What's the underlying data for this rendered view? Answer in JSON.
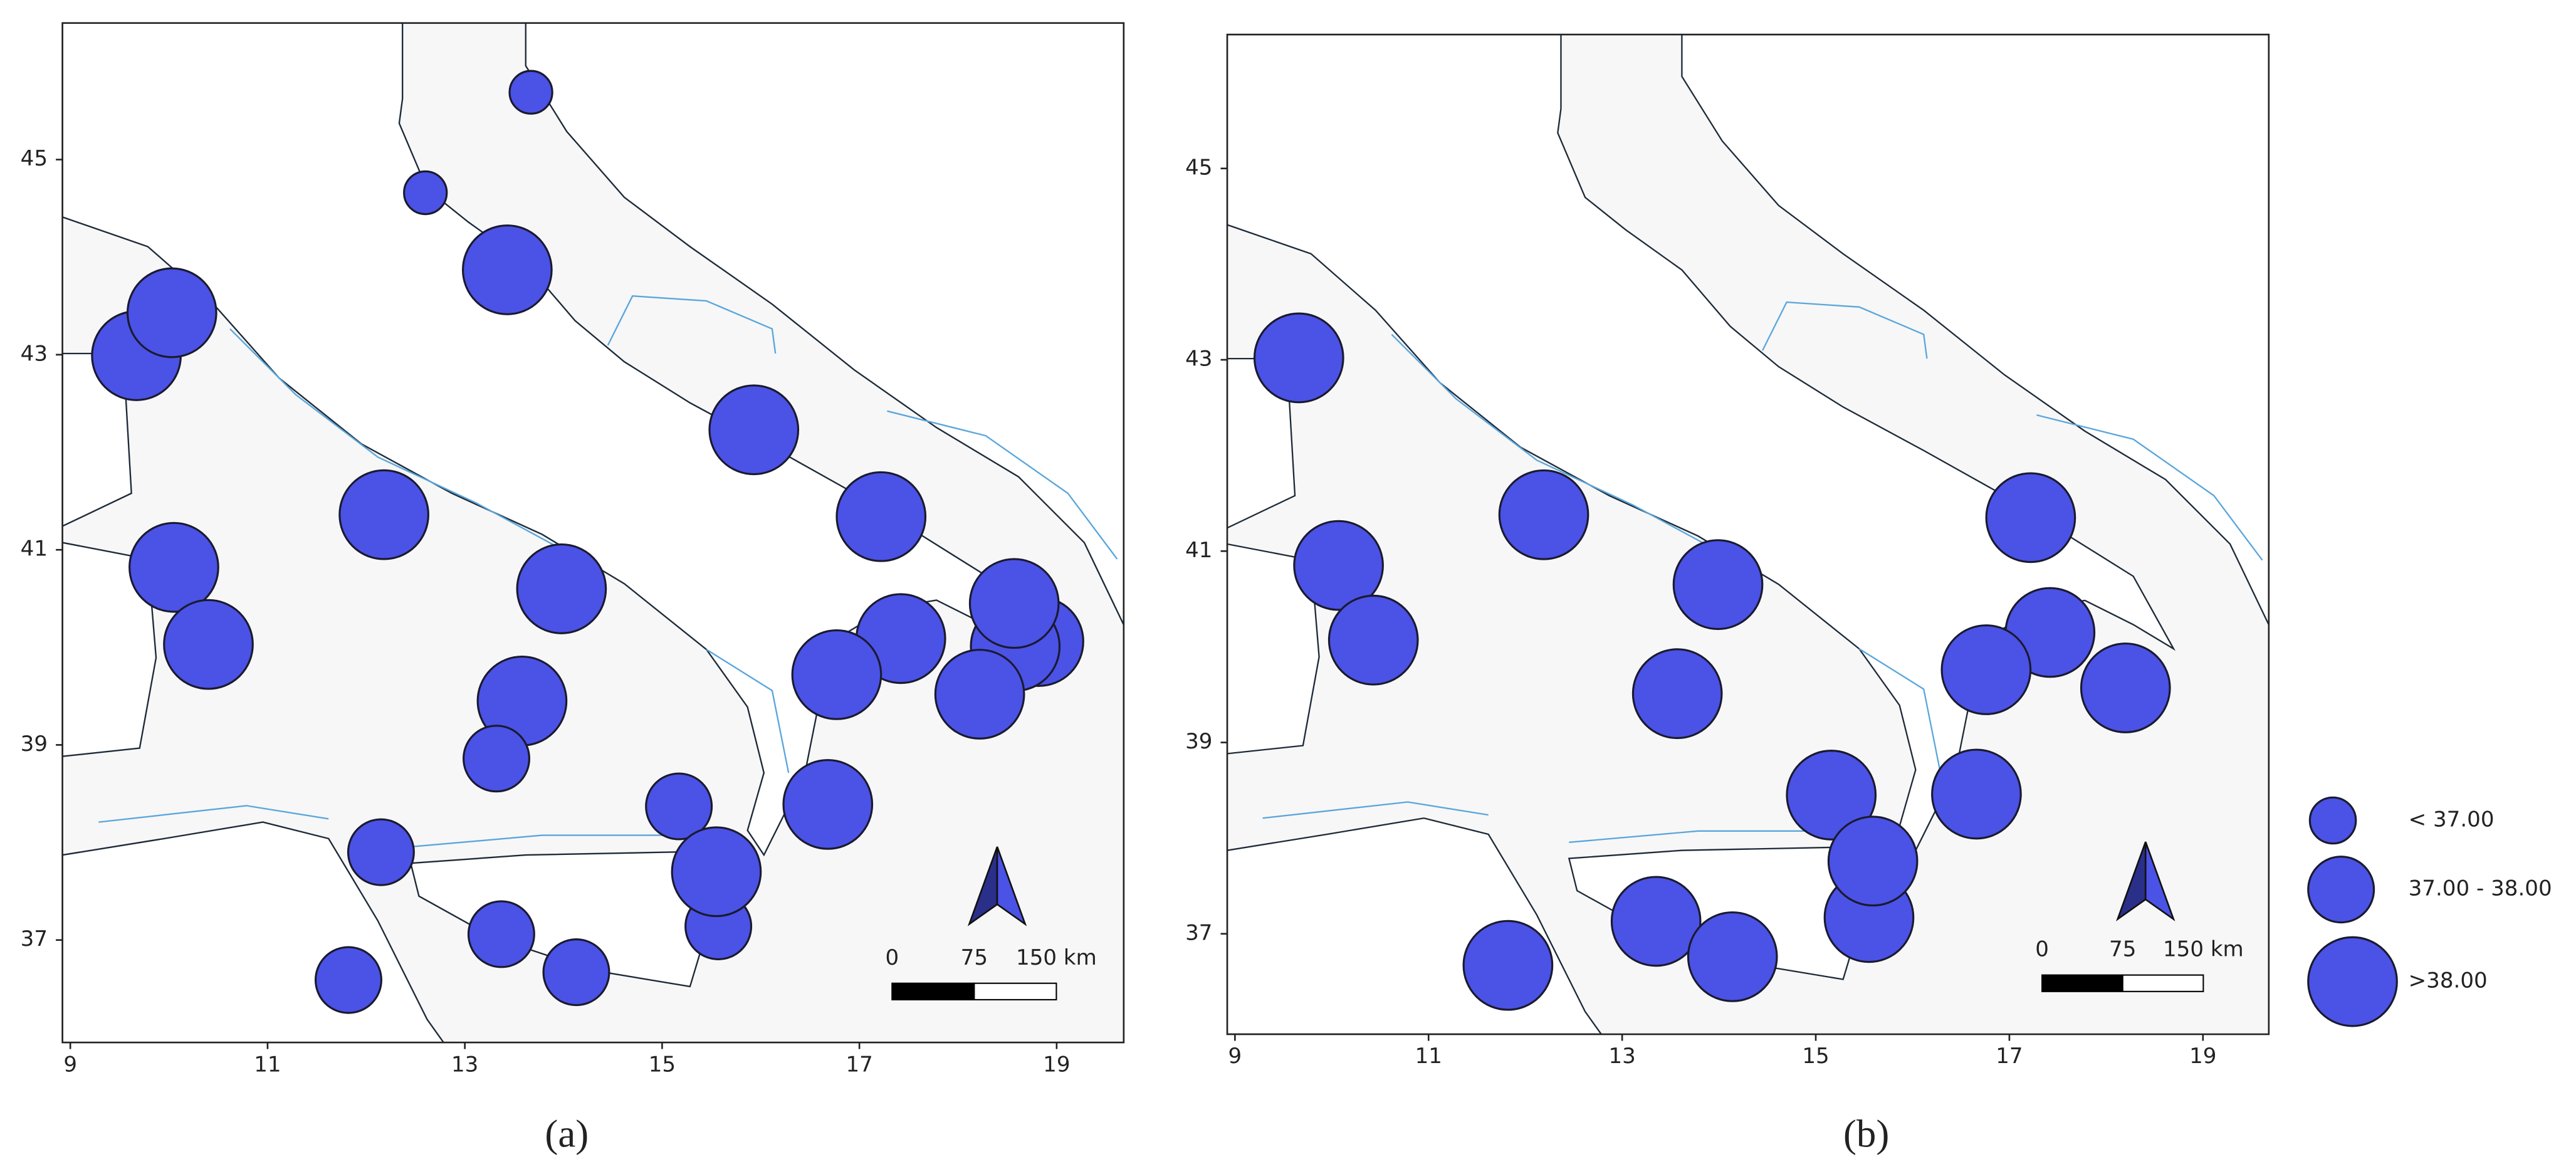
{
  "panels": [
    {
      "caption": "(a)",
      "xlim": [
        8.92,
        19.68
      ],
      "ylim": [
        35.95,
        46.4
      ],
      "xticks": [
        9,
        11,
        13,
        15,
        17,
        19
      ],
      "yticks": [
        37,
        39,
        41,
        43,
        45
      ],
      "points": [
        {
          "lon": 13.67,
          "lat": 45.69,
          "class": "< 37.00"
        },
        {
          "lon": 12.6,
          "lat": 44.66,
          "class": "< 37.00"
        },
        {
          "lon": 13.43,
          "lat": 43.87,
          "class": ">38.00"
        },
        {
          "lon": 9.67,
          "lat": 42.99,
          "class": ">38.00"
        },
        {
          "lon": 10.03,
          "lat": 43.43,
          "class": ">38.00"
        },
        {
          "lon": 15.93,
          "lat": 42.23,
          "class": ">38.00"
        },
        {
          "lon": 12.18,
          "lat": 41.36,
          "class": ">38.00"
        },
        {
          "lon": 10.05,
          "lat": 40.82,
          "class": ">38.00"
        },
        {
          "lon": 17.22,
          "lat": 41.34,
          "class": ">38.00"
        },
        {
          "lon": 13.98,
          "lat": 40.6,
          "class": ">38.00"
        },
        {
          "lon": 10.4,
          "lat": 40.03,
          "class": ">38.00"
        },
        {
          "lon": 18.82,
          "lat": 40.06,
          "class": ">38.00"
        },
        {
          "lon": 18.58,
          "lat": 40.01,
          "class": ">38.00"
        },
        {
          "lon": 18.57,
          "lat": 40.45,
          "class": ">38.00"
        },
        {
          "lon": 17.42,
          "lat": 40.09,
          "class": ">38.00"
        },
        {
          "lon": 16.77,
          "lat": 39.72,
          "class": ">38.00"
        },
        {
          "lon": 18.22,
          "lat": 39.52,
          "class": ">38.00"
        },
        {
          "lon": 13.58,
          "lat": 39.45,
          "class": ">38.00"
        },
        {
          "lon": 16.68,
          "lat": 38.39,
          "class": ">38.00"
        },
        {
          "lon": 13.32,
          "lat": 38.86,
          "class": "37.00 - 38.00"
        },
        {
          "lon": 15.17,
          "lat": 38.37,
          "class": "37.00 - 38.00"
        },
        {
          "lon": 12.15,
          "lat": 37.9,
          "class": "37.00 - 38.00"
        },
        {
          "lon": 15.57,
          "lat": 37.14,
          "class": "37.00 - 38.00"
        },
        {
          "lon": 15.55,
          "lat": 37.7,
          "class": ">38.00"
        },
        {
          "lon": 13.37,
          "lat": 37.06,
          "class": "37.00 - 38.00"
        },
        {
          "lon": 14.13,
          "lat": 36.67,
          "class": "37.00 - 38.00"
        },
        {
          "lon": 11.82,
          "lat": 36.59,
          "class": "37.00 - 38.00"
        }
      ]
    },
    {
      "caption": "(b)",
      "xlim": [
        8.92,
        19.68
      ],
      "ylim": [
        35.95,
        46.4
      ],
      "xticks": [
        9,
        11,
        13,
        15,
        17,
        19
      ],
      "yticks": [
        37,
        39,
        41,
        43,
        45
      ],
      "points": [
        {
          "lon": 9.66,
          "lat": 43.02,
          "class": ">38.00"
        },
        {
          "lon": 10.07,
          "lat": 40.85,
          "class": ">38.00"
        },
        {
          "lon": 10.43,
          "lat": 40.07,
          "class": ">38.00"
        },
        {
          "lon": 12.19,
          "lat": 41.38,
          "class": ">38.00"
        },
        {
          "lon": 13.99,
          "lat": 40.65,
          "class": ">38.00"
        },
        {
          "lon": 13.57,
          "lat": 39.51,
          "class": ">38.00"
        },
        {
          "lon": 17.22,
          "lat": 41.35,
          "class": ">38.00"
        },
        {
          "lon": 17.42,
          "lat": 40.15,
          "class": ">38.00"
        },
        {
          "lon": 16.76,
          "lat": 39.76,
          "class": ">38.00"
        },
        {
          "lon": 18.2,
          "lat": 39.57,
          "class": ">38.00"
        },
        {
          "lon": 16.66,
          "lat": 38.46,
          "class": ">38.00"
        },
        {
          "lon": 15.16,
          "lat": 38.45,
          "class": ">38.00"
        },
        {
          "lon": 15.55,
          "lat": 37.17,
          "class": ">38.00"
        },
        {
          "lon": 15.59,
          "lat": 37.76,
          "class": ">38.00"
        },
        {
          "lon": 13.35,
          "lat": 37.13,
          "class": ">38.00"
        },
        {
          "lon": 14.14,
          "lat": 36.76,
          "class": ">38.00"
        },
        {
          "lon": 11.82,
          "lat": 36.67,
          "class": ">38.00"
        }
      ]
    }
  ],
  "legend": {
    "color": "#4b52e6",
    "classes": [
      {
        "label": "< 37.00"
      },
      {
        "label": "37.00 - 38.00"
      },
      {
        "label": ">38.00"
      }
    ]
  },
  "scale_bar": {
    "ticks": [
      0,
      75,
      {
        "value": 150,
        "label": "150 km"
      }
    ]
  }
}
